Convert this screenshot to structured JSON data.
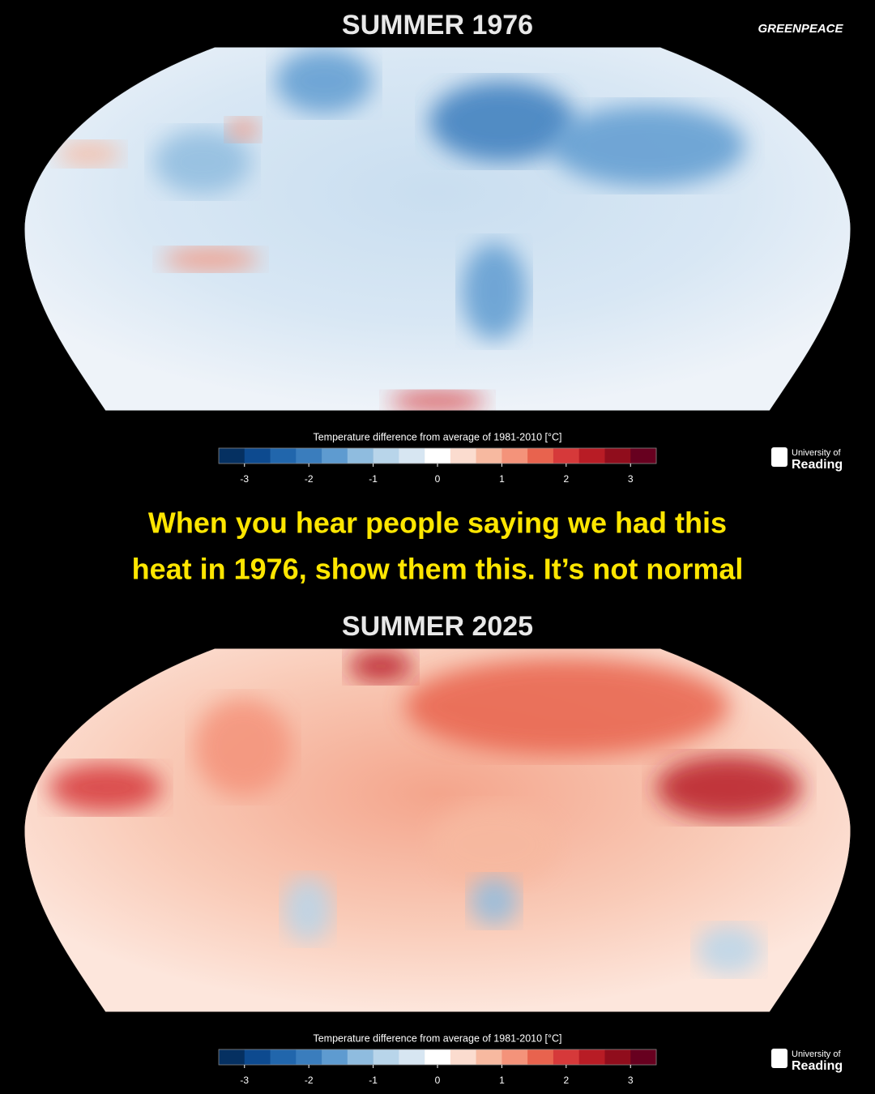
{
  "logo": "GREENPEACE",
  "university": [
    "University of",
    "Reading"
  ],
  "headline": [
    "When you hear people saying we had this",
    "heat in 1976, show them this. It’s not normal"
  ],
  "panels": [
    {
      "title": "SUMMER 1976",
      "theme": "cool",
      "colorbar": {
        "label": "Temperature difference from average of 1981-2010 [°C]",
        "lim": [
          -3.4,
          3.4
        ],
        "ticks": [
          -3,
          -2,
          -1,
          0,
          1,
          2,
          3
        ],
        "colors": [
          "#053061",
          "#0d4a8f",
          "#2166ac",
          "#3a7dbd",
          "#5e9bd0",
          "#8fbcdf",
          "#b8d5ea",
          "#d7e6f2",
          "#ffffff",
          "#fbdccf",
          "#f7b9a0",
          "#f4937a",
          "#e8634e",
          "#d6393a",
          "#b81c25",
          "#900d1c",
          "#67001f"
        ]
      }
    },
    {
      "title": "SUMMER 2025",
      "theme": "warm",
      "colorbar": {
        "label": "Temperature difference from average of 1981-2010 [°C]",
        "lim": [
          -3.4,
          3.4
        ],
        "ticks": [
          -3,
          -2,
          -1,
          0,
          1,
          2,
          3
        ],
        "colors": [
          "#053061",
          "#0d4a8f",
          "#2166ac",
          "#3a7dbd",
          "#5e9bd0",
          "#8fbcdf",
          "#b8d5ea",
          "#d7e6f2",
          "#ffffff",
          "#fbdccf",
          "#f7b9a0",
          "#f4937a",
          "#e8634e",
          "#d6393a",
          "#b81c25",
          "#900d1c",
          "#67001f"
        ]
      }
    }
  ]
}
